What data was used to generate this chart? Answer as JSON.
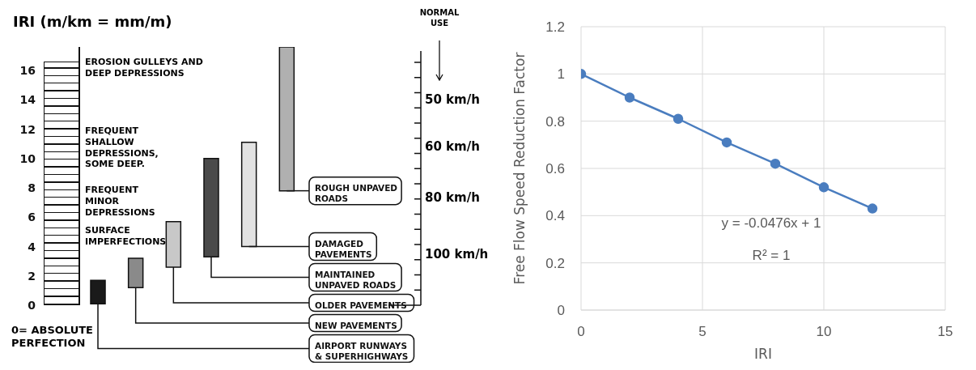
{
  "chart_data": [
    {
      "type": "bar",
      "ylabel": "IRI (m/km = mm/m)",
      "tick_labels": "y",
      "categories": [
        null,
        null,
        null,
        null,
        null,
        null
      ],
      "base": [
        0.1,
        1.2,
        2.6,
        3.3,
        4.0,
        7.8
      ],
      "values": [
        1.6,
        2.0,
        3.1,
        6.7,
        7.1,
        9.8
      ],
      "colors": [
        "#1a1a1a",
        "#8a8a8a",
        "#c8c8c8",
        "#4a4a4a",
        "#e2e2e2",
        "#b0b0b0"
      ],
      "ylim": [
        0,
        17.6
      ],
      "yticks": [
        0,
        2,
        4,
        6,
        8,
        10,
        12,
        14,
        16
      ],
      "annotations": [
        "EROSION GULLEYS AND DEEP DEPRESSIONS",
        "FREQUENT SHALLOW DEPRESSIONS, SOME DEEP.",
        "FREQUENT MINOR DEPRESSIONS",
        "SURFACE IMPERFECTIONS",
        "0= ABSOLUTE PERFECTION",
        "NORMAL USE",
        "50 km/h",
        "60 km/h",
        "80 km/h",
        "100 km/h",
        "AIRPORT RUNWAYS & SUPERHIGHWAYS",
        "NEW PAVEMENTS",
        "OLDER PAVEMENTS",
        "MAINTAINED UNPAVED ROADS",
        "DAMAGED PAVEMENTS",
        "ROUGH UNPAVED ROADS"
      ]
    },
    {
      "type": "line",
      "xlabel": "IRI",
      "ylabel": "Free Flow Speed Reduction Factor",
      "x": [
        0,
        2,
        4,
        6,
        8,
        10,
        12
      ],
      "series": [
        {
          "color": "#4a7dbf",
          "values": [
            1,
            0.9,
            0.81,
            0.71,
            0.62,
            0.52,
            0.43
          ]
        }
      ],
      "xlim": [
        0,
        15
      ],
      "xticks": [
        0,
        5,
        10,
        15
      ],
      "ylim": [
        0,
        1.2
      ],
      "yticks": [
        0,
        0.2,
        0.4,
        0.6,
        0.8,
        1,
        1.2
      ],
      "grid": true,
      "marker": "circle",
      "annotations": [
        "y = -0.0476x + 1",
        "R² = 1"
      ]
    }
  ]
}
